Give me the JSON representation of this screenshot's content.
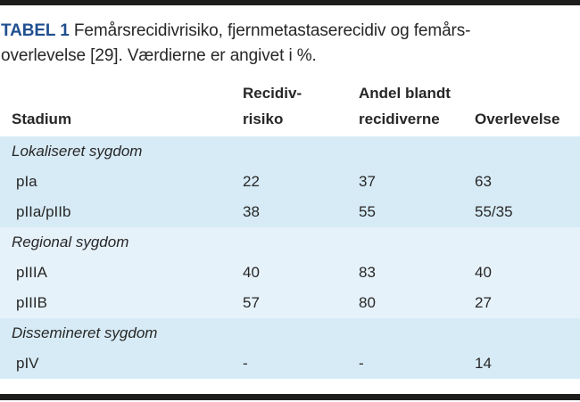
{
  "title": {
    "label": "TABEL 1",
    "text": " Femårsrecidivrisiko, fjernmetastaserecidiv og femårs-\noverlevelse [29]. Værdierne er angivet i %."
  },
  "table": {
    "columns": [
      "Stadium",
      "Recidiv-\nrisiko",
      "Andel blandt\nrecidiverne",
      "Overlevelse"
    ],
    "sections": [
      {
        "label": "Lokaliseret sygdom",
        "rows": [
          {
            "stadium": "pIa",
            "recidivrisiko": "22",
            "andel_blandt_recidiverne": "37",
            "overlevelse": "63"
          },
          {
            "stadium": "pIIa/pIIb",
            "recidivrisiko": "38",
            "andel_blandt_recidiverne": "55",
            "overlevelse": "55/35"
          }
        ]
      },
      {
        "label": "Regional sygdom",
        "rows": [
          {
            "stadium": "pIIIA",
            "recidivrisiko": "40",
            "andel_blandt_recidiverne": "83",
            "overlevelse": "40"
          },
          {
            "stadium": "pIIIB",
            "recidivrisiko": "57",
            "andel_blandt_recidiverne": "80",
            "overlevelse": "27"
          }
        ]
      },
      {
        "label": "Dissemineret sygdom",
        "rows": [
          {
            "stadium": "pIV",
            "recidivrisiko": "-",
            "andel_blandt_recidiverne": "-",
            "overlevelse": "14"
          }
        ]
      }
    ]
  },
  "colors": {
    "title_blue": "#1f4f8f",
    "band_dark": "#d7ebf6",
    "band_light": "#e6f2fa",
    "rule_black": "#1d1d1b",
    "text": "#272727"
  }
}
